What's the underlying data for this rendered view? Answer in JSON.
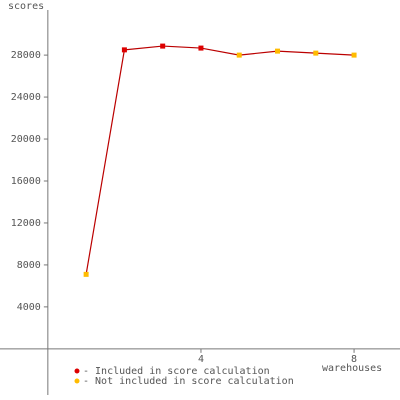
{
  "chart_data": {
    "type": "line",
    "x_label": "warehouses",
    "y_label": "scores",
    "x": [
      1,
      2,
      3,
      4,
      5,
      6,
      7,
      8
    ],
    "series": [
      {
        "name": "- Included in score calculation",
        "color": "#dd0000",
        "values": [
          null,
          28500,
          28860,
          28670,
          null,
          null,
          null,
          null
        ]
      },
      {
        "name": "- Not included in score calculation",
        "color": "#ffbb00",
        "values": [
          7100,
          null,
          null,
          null,
          28000,
          28380,
          28190,
          28000
        ]
      }
    ],
    "line_color": "#bb0000",
    "xlim": [
      -1.25,
      9.2
    ],
    "ylim": [
      -4400,
      32300
    ],
    "xticks": [
      4,
      8
    ],
    "yticks": [
      4000,
      8000,
      12000,
      16000,
      20000,
      24000,
      28000
    ]
  }
}
